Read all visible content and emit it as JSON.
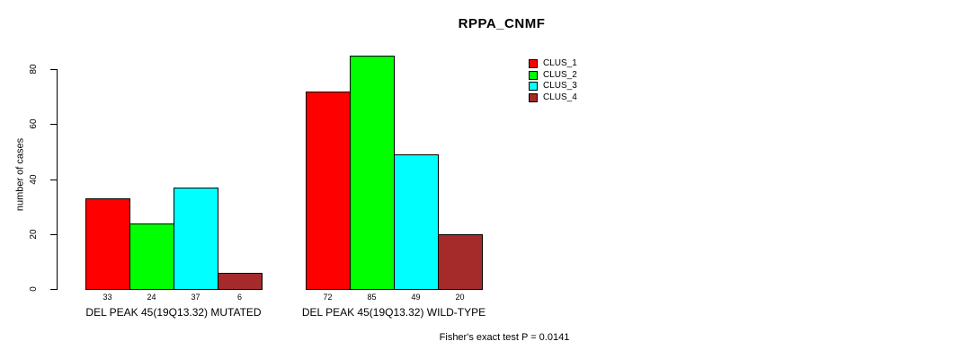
{
  "chart_data": {
    "type": "bar",
    "title": "RPPA_CNMF",
    "ylabel": "number of cases",
    "xlabel": "",
    "ylim": [
      0,
      80
    ],
    "yticks": [
      0,
      20,
      40,
      60,
      80
    ],
    "grid": false,
    "legend_position": "top-right",
    "bar_value_labels": true,
    "categories": [
      "DEL PEAK 45(19Q13.32) MUTATED",
      "DEL PEAK 45(19Q13.32) WILD-TYPE"
    ],
    "series": [
      {
        "name": "CLUS_1",
        "color": "#ff0000",
        "values": [
          33,
          72
        ]
      },
      {
        "name": "CLUS_2",
        "color": "#00ff00",
        "values": [
          24,
          85
        ]
      },
      {
        "name": "CLUS_3",
        "color": "#00ffff",
        "values": [
          37,
          49
        ]
      },
      {
        "name": "CLUS_4",
        "color": "#a52a2a",
        "values": [
          6,
          20
        ]
      }
    ],
    "annotation": "Fisher's exact test P = 0.0141"
  },
  "colors": {
    "background": "#ffffff",
    "axis": "#000000",
    "text": "#000000"
  }
}
